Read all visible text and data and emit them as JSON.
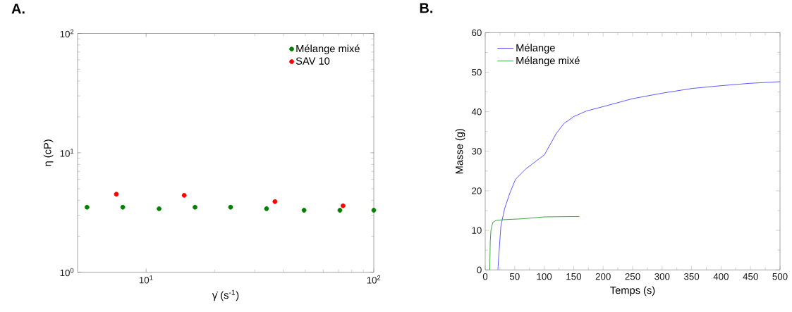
{
  "chart_data": [
    {
      "type": "scatter",
      "title": "A.",
      "xlabel": "γ̇ (s$^{-1}$)",
      "ylabel": "η (cP)",
      "log": "xy",
      "marker": "circle",
      "legend": "top right",
      "xlim": [
        5,
        100
      ],
      "ylim": [
        1,
        100
      ],
      "xticks": [
        {
          "value": 10,
          "label": "10$^{1}$"
        },
        {
          "value": 100,
          "label": "10$^{2}$"
        }
      ],
      "yticks": [
        {
          "value": 1,
          "label": "10$^{0}$"
        },
        {
          "value": 10,
          "label": "10$^{1}$"
        },
        {
          "value": 100,
          "label": "10$^{2}$"
        }
      ],
      "series": [
        {
          "name": "Mélange mixé",
          "color": "#008000",
          "x": [
            5.5,
            7.9,
            11.4,
            16.4,
            23.5,
            33.8,
            49.4,
            71,
            100
          ],
          "values": [
            3.5,
            3.5,
            3.4,
            3.5,
            3.5,
            3.4,
            3.3,
            3.3,
            3.3
          ]
        },
        {
          "name": "SAV 10",
          "color": "#ff0000",
          "x": [
            7.4,
            14.7,
            36.8,
            73.3
          ],
          "values": [
            4.5,
            4.4,
            3.9,
            3.6
          ]
        }
      ]
    },
    {
      "type": "line",
      "title": "B.",
      "xlabel": "Temps (s)",
      "ylabel": "Masse (g)",
      "marker": "none",
      "line_style": "solid",
      "legend": "top left",
      "xlim": [
        0,
        500
      ],
      "ylim": [
        0,
        60
      ],
      "xticks": [
        0,
        50,
        100,
        150,
        200,
        250,
        300,
        350,
        400,
        450,
        500
      ],
      "yticks": [
        0,
        10,
        20,
        30,
        40,
        50,
        60
      ],
      "series": [
        {
          "name": "Mélange",
          "color": "#4c4cff",
          "x": [
            21.4,
            26.5,
            32.9,
            41.5,
            51.3,
            69.2,
            100.4,
            120.5,
            133.3,
            150.4,
            171.8,
            200,
            249.6,
            300,
            351.3,
            400.9,
            449.6,
            500
          ],
          "values": [
            0,
            11,
            15.5,
            19.3,
            22.9,
            25.6,
            29.1,
            34.5,
            37.0,
            38.8,
            40.2,
            41.3,
            43.3,
            44.7,
            45.9,
            46.6,
            47.2,
            47.6
          ]
        },
        {
          "name": "Mélange mixé",
          "color": "#339933",
          "x": [
            7.7,
            8.5,
            9.8,
            12.8,
            17.9,
            30.8,
            60.7,
            100.4,
            159.8
          ],
          "values": [
            0,
            7.2,
            10.1,
            12,
            12.5,
            12.7,
            12.9,
            13.4,
            13.5
          ]
        }
      ]
    }
  ]
}
